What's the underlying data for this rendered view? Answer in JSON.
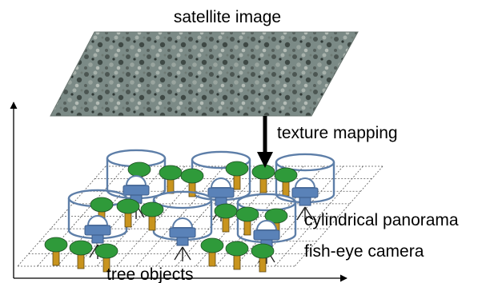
{
  "labels": {
    "satellite_image": "satellite image",
    "texture_mapping": "texture mapping",
    "cylindrical_panorama": "cylindrical panorama",
    "fish_eye_camera": "fish-eye camera",
    "tree_objects": "tree objects"
  },
  "colors": {
    "tree_canopy": "#2f9a3a",
    "tree_trunk": "#c8941e",
    "camera_body": "#5a82b8",
    "cylinder_stroke": "#5d7ea8",
    "satellite_base": "#7b8a86",
    "grid": "#555555"
  }
}
